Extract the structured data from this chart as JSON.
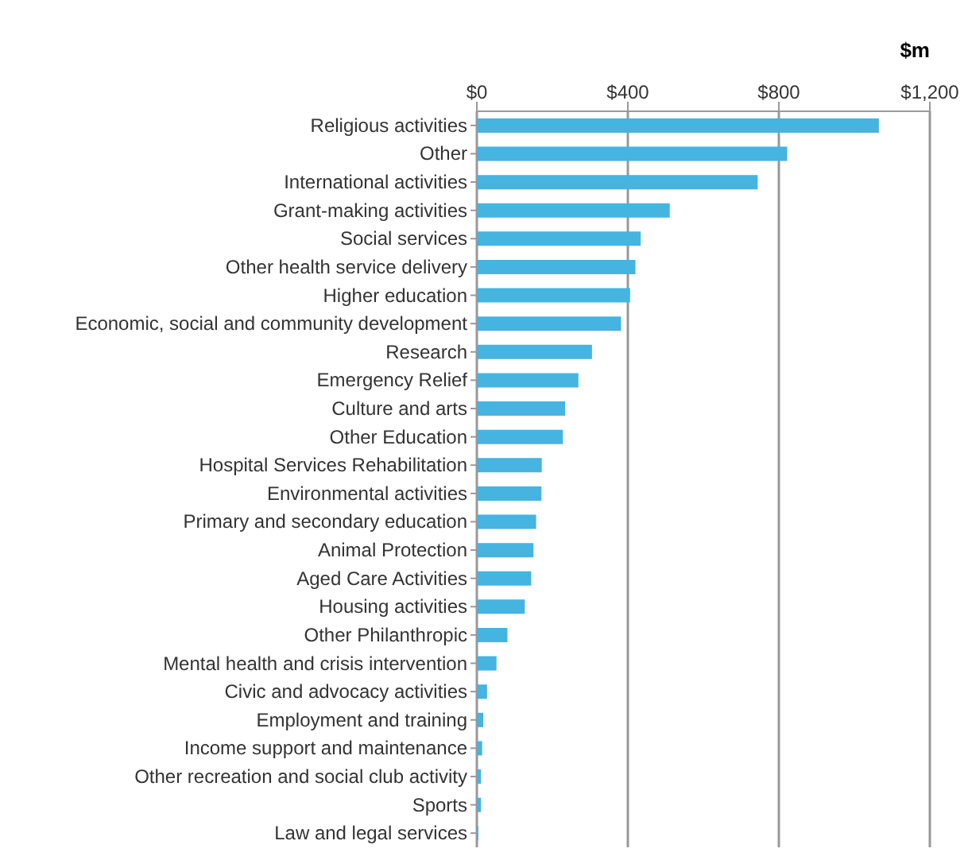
{
  "chart_data": {
    "type": "bar",
    "orientation": "horizontal",
    "xlabel": "$m",
    "categories": [
      "Religious activities",
      "Other",
      "International activities",
      "Grant-making activities",
      "Social services",
      "Other health service delivery",
      "Higher education",
      "Economic, social and community development",
      "Research",
      "Emergency Relief",
      "Culture and arts",
      "Other Education",
      "Hospital Services Rehabilitation",
      "Environmental activities",
      "Primary and secondary education",
      "Animal Protection",
      "Aged Care Activities",
      "Housing activities",
      "Other Philanthropic",
      "Mental health and crisis intervention",
      "Civic and advocacy activities",
      "Employment and training",
      "Income support and maintenance",
      "Other recreation and social club activity",
      "Sports",
      "Law and legal services"
    ],
    "values": [
      1065,
      822,
      744,
      511,
      434,
      420,
      406,
      382,
      305,
      269,
      234,
      228,
      172,
      171,
      157,
      150,
      144,
      127,
      81,
      52,
      27,
      17,
      14,
      11,
      11,
      4
    ],
    "color": "#45b4e1",
    "xlim": [
      0,
      1200
    ],
    "xticks": [
      {
        "value": 0,
        "label": "$0"
      },
      {
        "value": 400,
        "label": "$400"
      },
      {
        "value": 800,
        "label": "$800"
      },
      {
        "value": 1200,
        "label": "$1,200"
      }
    ],
    "grid": "x"
  }
}
